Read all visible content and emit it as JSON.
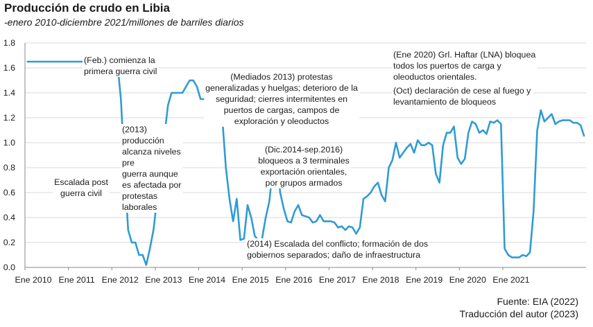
{
  "title": "Producción de crudo en Libia",
  "subtitle": "-enero 2010-diciembre 2021/millones de barriles diarios",
  "source": "Fuente: EIA (2022)",
  "translation": "Traducción del autor (2023)",
  "colors": {
    "line": "#2f9bd3",
    "axis": "#888888",
    "grid": "#d9d9d9"
  },
  "chart_data": {
    "type": "line",
    "title": "Producción de crudo en Libia",
    "subtitle": "-enero 2010-diciembre 2021/millones de barriles diarios",
    "xlabel": "",
    "ylabel": "",
    "ylim": [
      0,
      1.8
    ],
    "yticks": [
      "0.0",
      "0.2",
      "0.4",
      "0.6",
      "0.8",
      "1.0",
      "1.2",
      "1.4",
      "1.6",
      "1.8"
    ],
    "xticks": [
      "Ene 2010",
      "Ene 2011",
      "Ene 2012",
      "Ene 2013",
      "Ene 2014",
      "Ene 2015",
      "Ene 2016",
      "Ene 2017",
      "Ene 2018",
      "Ene 2019",
      "Ene 2020",
      "Ene 2021"
    ],
    "grid": "horizontal",
    "x_start": "2010-01",
    "x_step": "month",
    "series": [
      {
        "values": [
          1.65,
          1.65,
          1.65,
          1.65,
          1.65,
          1.65,
          1.65,
          1.65,
          1.65,
          1.65,
          1.65,
          1.65,
          1.65,
          1.65,
          1.65,
          1.65,
          1.65,
          1.65,
          1.65,
          1.65,
          1.65,
          1.65,
          1.65,
          1.65,
          1.65,
          1.65,
          1.35,
          0.8,
          0.3,
          0.2,
          0.2,
          0.1,
          0.1,
          0.02,
          0.15,
          0.3,
          0.55,
          0.8,
          1.05,
          1.3,
          1.4,
          1.4,
          1.4,
          1.4,
          1.45,
          1.5,
          1.5,
          1.45,
          1.35,
          1.35,
          1.4,
          1.35,
          1.45,
          1.42,
          1.2,
          0.8,
          0.55,
          0.37,
          0.55,
          0.22,
          0.23,
          0.5,
          0.4,
          0.25,
          0.22,
          0.23,
          0.4,
          0.53,
          0.8,
          0.95,
          0.6,
          0.47,
          0.37,
          0.36,
          0.45,
          0.5,
          0.42,
          0.41,
          0.4,
          0.36,
          0.37,
          0.42,
          0.37,
          0.37,
          0.37,
          0.36,
          0.32,
          0.33,
          0.3,
          0.33,
          0.32,
          0.27,
          0.32,
          0.55,
          0.57,
          0.6,
          0.65,
          0.68,
          0.58,
          0.53,
          0.8,
          0.86,
          1.0,
          0.88,
          0.92,
          0.96,
          0.99,
          0.92,
          1.02,
          0.98,
          0.98,
          1.0,
          0.98,
          0.75,
          0.68,
          0.98,
          1.08,
          1.08,
          1.13,
          0.88,
          0.83,
          0.87,
          1.08,
          1.17,
          1.15,
          1.08,
          1.1,
          1.07,
          1.17,
          1.16,
          1.18,
          1.15,
          0.15,
          0.1,
          0.08,
          0.08,
          0.08,
          0.1,
          0.09,
          0.12,
          0.45,
          1.1,
          1.26,
          1.17,
          1.2,
          1.23,
          1.15,
          1.17,
          1.18,
          1.18,
          1.18,
          1.16,
          1.16,
          1.14,
          1.05
        ]
      }
    ],
    "annotations": [
      [
        "(Feb.) comienza la",
        "primera guerra civil"
      ],
      [
        "(2013)",
        "producción",
        "alcanza niveles",
        "pre",
        "guerra aunque",
        "es afectada por",
        "protestas",
        "laborales"
      ],
      [
        "(Mediados 2013) protestas",
        "generalizadas y huelgas; deterioro de la",
        "seguridad; cierres intermitentes en",
        "puertos de cargas, campos de",
        "exploración y oleoductos"
      ],
      [
        "Escalada post",
        "guerra civil"
      ],
      [
        "(Dic.2014-sep.2016)",
        "bloqueos a 3 terminales",
        "exportación orientales,",
        "por grupos armados"
      ],
      [
        "(Ene 2020) Grl. Haftar (LNA) bloquea",
        "todos los puertos de carga y",
        "oleoductos orientales."
      ],
      [
        "(Oct) declaración de cese al fuego y",
        "levantamiento de bloqueos"
      ],
      [
        "(2014) Escalada del conflicto; formación de dos",
        "gobiernos separados; daño de infraestructura"
      ]
    ]
  }
}
